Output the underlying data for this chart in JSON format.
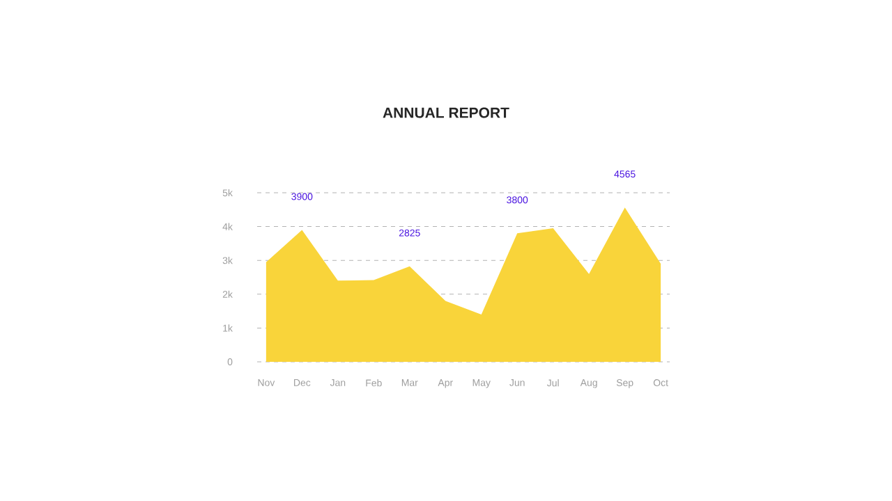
{
  "chart_data": {
    "type": "area",
    "title": "ANNUAL REPORT",
    "categories": [
      "Nov",
      "Dec",
      "Jan",
      "Feb",
      "Mar",
      "Apr",
      "May",
      "Jun",
      "Jul",
      "Aug",
      "Sep",
      "Oct"
    ],
    "values": [
      2950,
      3900,
      2400,
      2420,
      2825,
      1800,
      1400,
      3800,
      3950,
      2600,
      4565,
      2900
    ],
    "value_labels": [
      null,
      "3900",
      null,
      null,
      "2825",
      null,
      null,
      "3800",
      null,
      null,
      "4565",
      null
    ],
    "color": "#f9d43a",
    "ylim": [
      0,
      5000
    ],
    "yticks": [
      0,
      {
        "value": 1000,
        "label": "1k"
      },
      {
        "value": 2000,
        "label": "2k"
      },
      {
        "value": 3000,
        "label": "3k"
      },
      {
        "value": 4000,
        "label": "4k"
      },
      {
        "value": 5000,
        "label": "5k"
      }
    ],
    "grid": "y"
  }
}
